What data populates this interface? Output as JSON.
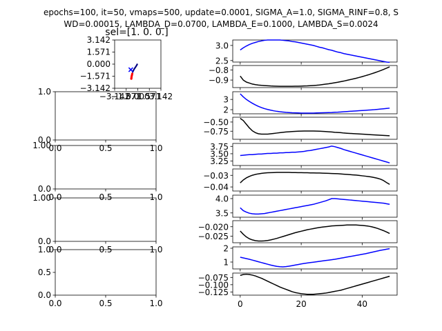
{
  "header": {
    "suptitle_line1": "epochs=100, it=50, vmaps=500, update=0.0001, SIGMA_A=1.0, SIGMA_RINF=0.8, S",
    "suptitle_line2": "WD=0.00015, LAMBDA_D=0.0700, LAMBDA_E=0.1000, LAMBDA_S=0.0024"
  },
  "chart_data": [
    {
      "type": "scatter",
      "title": "sel=[1. 0. 0.]",
      "xlim": [
        -3.142,
        3.142
      ],
      "ylim": [
        -3.142,
        3.142
      ],
      "xticks": [
        "−3.142",
        "−1.571",
        "0.000",
        "1.571",
        "3.142"
      ],
      "yticks": [
        "3.142",
        "1.571",
        "0.000",
        "−1.571",
        "−3.142"
      ],
      "marker_colors": {
        "traj": "#000080",
        "marker": "#0000ff",
        "tail": "#ff0000"
      },
      "trajectory": [
        [
          -0.05,
          0.05
        ],
        [
          -0.08,
          -0.02
        ],
        [
          -0.12,
          -0.1
        ],
        [
          -0.18,
          -0.2
        ],
        [
          -0.26,
          -0.32
        ],
        [
          -0.36,
          -0.46
        ],
        [
          -0.46,
          -0.6
        ],
        [
          -0.56,
          -0.76
        ],
        [
          -0.64,
          -0.92
        ],
        [
          -0.72,
          -1.1
        ]
      ],
      "marker_point": [
        -0.95,
        -0.72
      ],
      "tail": [
        [
          -0.75,
          -1.25
        ],
        [
          -0.8,
          -1.45
        ],
        [
          -0.84,
          -1.62
        ],
        [
          -0.86,
          -1.78
        ],
        [
          -0.88,
          -1.9
        ]
      ]
    },
    {
      "type": "empty",
      "xlim": [
        0,
        1
      ],
      "ylim": [
        0,
        1
      ],
      "xticks": [
        "0.0",
        "0.5",
        "1.0"
      ],
      "yticks": [
        "0.0",
        "1.0"
      ]
    },
    {
      "type": "empty",
      "xlim": [
        0,
        1
      ],
      "ylim": [
        0,
        1
      ],
      "xticks": [
        "0.0",
        "0.5",
        "1.0"
      ],
      "yticks": [
        "0.0",
        "1.00"
      ]
    },
    {
      "type": "empty",
      "xlim": [
        0,
        1
      ],
      "ylim": [
        0,
        1
      ],
      "xticks": [
        "0.0",
        "0.5",
        "1.0"
      ],
      "yticks": [
        "0.0",
        "1.00"
      ]
    },
    {
      "type": "empty",
      "xlim": [
        0,
        1
      ],
      "ylim": [
        0,
        1
      ],
      "xticks": [
        "0.0",
        "0.5",
        "1.0"
      ],
      "yticks": [
        "0.0",
        "0.5",
        "1.0"
      ]
    },
    {
      "type": "line",
      "color": "#0000ff",
      "ylim": [
        2.45,
        3.18
      ],
      "yticks": [
        {
          "v": 3.0,
          "label": "3.0"
        },
        {
          "v": 2.5,
          "label": "2.5"
        }
      ],
      "values": [
        2.85,
        2.92,
        2.98,
        3.03,
        3.07,
        3.1,
        3.13,
        3.15,
        3.17,
        3.18,
        3.18,
        3.18,
        3.18,
        3.18,
        3.17,
        3.16,
        3.15,
        3.13,
        3.12,
        3.1,
        3.08,
        3.06,
        3.04,
        3.02,
        3.0,
        2.97,
        2.94,
        2.92,
        2.89,
        2.86,
        2.84,
        2.81,
        2.78,
        2.76,
        2.73,
        2.71,
        2.69,
        2.67,
        2.65,
        2.63,
        2.61,
        2.59,
        2.57,
        2.55,
        2.53,
        2.51,
        2.49,
        2.47,
        2.45,
        2.44
      ]
    },
    {
      "type": "line",
      "color": "#000000",
      "ylim": [
        -0.975,
        -0.755
      ],
      "yticks": [
        {
          "v": -0.8,
          "label": "−0.8"
        },
        {
          "v": -0.9,
          "label": "−0.9"
        }
      ],
      "values": [
        -0.86,
        -0.9,
        -0.92,
        -0.93,
        -0.94,
        -0.946,
        -0.95,
        -0.953,
        -0.955,
        -0.957,
        -0.959,
        -0.96,
        -0.961,
        -0.962,
        -0.962,
        -0.962,
        -0.962,
        -0.962,
        -0.961,
        -0.961,
        -0.96,
        -0.959,
        -0.958,
        -0.956,
        -0.954,
        -0.952,
        -0.949,
        -0.945,
        -0.941,
        -0.937,
        -0.932,
        -0.927,
        -0.922,
        -0.916,
        -0.91,
        -0.903,
        -0.896,
        -0.889,
        -0.882,
        -0.874,
        -0.866,
        -0.857,
        -0.848,
        -0.838,
        -0.828,
        -0.817,
        -0.806,
        -0.794,
        -0.781,
        -0.768
      ]
    },
    {
      "type": "line",
      "color": "#0000ff",
      "ylim": [
        1.6,
        3.75
      ],
      "yticks": [
        {
          "v": 3.0,
          "label": "3"
        },
        {
          "v": 2.0,
          "label": "2"
        }
      ],
      "values": [
        3.55,
        3.25,
        3.0,
        2.8,
        2.62,
        2.46,
        2.32,
        2.2,
        2.1,
        2.02,
        1.95,
        1.89,
        1.84,
        1.8,
        1.77,
        1.74,
        1.72,
        1.7,
        1.69,
        1.68,
        1.67,
        1.67,
        1.67,
        1.67,
        1.67,
        1.68,
        1.69,
        1.7,
        1.71,
        1.72,
        1.73,
        1.75,
        1.76,
        1.78,
        1.8,
        1.82,
        1.84,
        1.86,
        1.88,
        1.9,
        1.92,
        1.94,
        1.96,
        1.98,
        2.0,
        2.03,
        2.06,
        2.09,
        2.12,
        2.15
      ]
    },
    {
      "type": "line",
      "color": "#000000",
      "ylim": [
        -0.97,
        -0.37
      ],
      "yticks": [
        {
          "v": -0.5,
          "label": "−0.50"
        },
        {
          "v": -0.75,
          "label": "−0.75"
        }
      ],
      "values": [
        -0.4,
        -0.46,
        -0.56,
        -0.66,
        -0.74,
        -0.79,
        -0.82,
        -0.83,
        -0.83,
        -0.83,
        -0.82,
        -0.81,
        -0.8,
        -0.79,
        -0.78,
        -0.77,
        -0.765,
        -0.76,
        -0.755,
        -0.75,
        -0.748,
        -0.745,
        -0.745,
        -0.745,
        -0.745,
        -0.748,
        -0.75,
        -0.755,
        -0.76,
        -0.765,
        -0.77,
        -0.78,
        -0.785,
        -0.79,
        -0.8,
        -0.805,
        -0.81,
        -0.815,
        -0.82,
        -0.825,
        -0.83,
        -0.835,
        -0.84,
        -0.845,
        -0.85,
        -0.855,
        -0.86,
        -0.865,
        -0.87,
        -0.875
      ]
    },
    {
      "type": "line",
      "color": "#0000ff",
      "ylim": [
        3.1,
        3.85
      ],
      "yticks": [
        {
          "v": 3.75,
          "label": "3.75"
        },
        {
          "v": 3.5,
          "label": "3.50"
        },
        {
          "v": 3.25,
          "label": "3.25"
        }
      ],
      "values": [
        3.44,
        3.45,
        3.46,
        3.47,
        3.47,
        3.48,
        3.49,
        3.49,
        3.5,
        3.51,
        3.51,
        3.52,
        3.52,
        3.53,
        3.53,
        3.54,
        3.54,
        3.55,
        3.55,
        3.56,
        3.57,
        3.58,
        3.6,
        3.61,
        3.63,
        3.65,
        3.67,
        3.69,
        3.71,
        3.73,
        3.76,
        3.74,
        3.71,
        3.68,
        3.64,
        3.61,
        3.58,
        3.55,
        3.52,
        3.49,
        3.46,
        3.43,
        3.4,
        3.37,
        3.34,
        3.31,
        3.28,
        3.25,
        3.22,
        3.19
      ]
    },
    {
      "type": "line",
      "color": "#000000",
      "ylim": [
        -0.0435,
        -0.0245
      ],
      "yticks": [
        {
          "v": -0.03,
          "label": "−0.03"
        },
        {
          "v": -0.04,
          "label": "−0.04"
        }
      ],
      "values": [
        -0.0365,
        -0.034,
        -0.0322,
        -0.0309,
        -0.0299,
        -0.0292,
        -0.0287,
        -0.0283,
        -0.028,
        -0.0278,
        -0.0277,
        -0.0276,
        -0.0275,
        -0.0275,
        -0.0275,
        -0.0275,
        -0.0275,
        -0.0276,
        -0.0276,
        -0.0277,
        -0.0277,
        -0.0278,
        -0.0278,
        -0.0279,
        -0.0279,
        -0.028,
        -0.028,
        -0.0281,
        -0.0282,
        -0.0283,
        -0.0284,
        -0.0285,
        -0.0286,
        -0.0288,
        -0.029,
        -0.0292,
        -0.0294,
        -0.0296,
        -0.0298,
        -0.0301,
        -0.0304,
        -0.0307,
        -0.031,
        -0.0314,
        -0.0319,
        -0.0325,
        -0.0333,
        -0.0345,
        -0.0362,
        -0.0378
      ]
    },
    {
      "type": "line",
      "color": "#0000ff",
      "ylim": [
        3.35,
        4.12
      ],
      "yticks": [
        {
          "v": 4.0,
          "label": "4.0"
        },
        {
          "v": 3.5,
          "label": "3.5"
        }
      ],
      "values": [
        3.68,
        3.58,
        3.53,
        3.49,
        3.47,
        3.46,
        3.46,
        3.47,
        3.48,
        3.5,
        3.52,
        3.54,
        3.56,
        3.58,
        3.6,
        3.62,
        3.64,
        3.66,
        3.68,
        3.7,
        3.72,
        3.74,
        3.76,
        3.78,
        3.8,
        3.83,
        3.86,
        3.89,
        3.92,
        3.96,
        4.0,
        4.0,
        3.99,
        3.98,
        3.97,
        3.96,
        3.95,
        3.94,
        3.93,
        3.92,
        3.91,
        3.9,
        3.89,
        3.88,
        3.87,
        3.86,
        3.85,
        3.84,
        3.82,
        3.8
      ]
    },
    {
      "type": "line",
      "color": "#000000",
      "ylim": [
        -0.0285,
        -0.0168
      ],
      "yticks": [
        {
          "v": -0.02,
          "label": "−0.020"
        },
        {
          "v": -0.025,
          "label": "−0.025"
        }
      ],
      "values": [
        -0.0223,
        -0.024,
        -0.0254,
        -0.0264,
        -0.027,
        -0.0274,
        -0.0276,
        -0.0276,
        -0.0275,
        -0.0273,
        -0.027,
        -0.0266,
        -0.0262,
        -0.0257,
        -0.0252,
        -0.0247,
        -0.0242,
        -0.0237,
        -0.0232,
        -0.0228,
        -0.0224,
        -0.022,
        -0.0216,
        -0.0213,
        -0.021,
        -0.0207,
        -0.0204,
        -0.0202,
        -0.02,
        -0.0198,
        -0.0196,
        -0.0195,
        -0.0194,
        -0.0193,
        -0.0192,
        -0.0191,
        -0.0191,
        -0.0191,
        -0.0191,
        -0.0192,
        -0.0193,
        -0.0195,
        -0.0197,
        -0.02,
        -0.0204,
        -0.0209,
        -0.0215,
        -0.0221,
        -0.0228,
        -0.0236
      ]
    },
    {
      "type": "line",
      "color": "#0000ff",
      "ylim": [
        0.5,
        2.1
      ],
      "yticks": [
        {
          "v": 2.0,
          "label": "2"
        },
        {
          "v": 1.0,
          "label": "1"
        }
      ],
      "values": [
        1.35,
        1.3,
        1.25,
        1.2,
        1.14,
        1.08,
        1.02,
        0.96,
        0.9,
        0.84,
        0.78,
        0.73,
        0.69,
        0.66,
        0.65,
        0.67,
        0.7,
        0.74,
        0.78,
        0.82,
        0.86,
        0.9,
        0.93,
        0.96,
        0.99,
        1.02,
        1.05,
        1.08,
        1.11,
        1.14,
        1.17,
        1.2,
        1.24,
        1.28,
        1.32,
        1.36,
        1.4,
        1.44,
        1.48,
        1.52,
        1.56,
        1.6,
        1.65,
        1.7,
        1.75,
        1.8,
        1.85,
        1.89,
        1.93,
        1.97
      ]
    },
    {
      "type": "line",
      "color": "#000000",
      "ylim": [
        -0.136,
        -0.06
      ],
      "xlim": [
        -2.45,
        51.45
      ],
      "xticks": [
        {
          "v": 0,
          "label": "0"
        },
        {
          "v": 20,
          "label": "20"
        },
        {
          "v": 40,
          "label": "40"
        }
      ],
      "yticks": [
        {
          "v": -0.075,
          "label": "−0.075"
        },
        {
          "v": -0.1,
          "label": "−0.100"
        },
        {
          "v": -0.125,
          "label": "−0.125"
        }
      ],
      "values": [
        -0.068,
        -0.065,
        -0.064,
        -0.065,
        -0.067,
        -0.07,
        -0.074,
        -0.078,
        -0.083,
        -0.088,
        -0.093,
        -0.098,
        -0.103,
        -0.108,
        -0.112,
        -0.116,
        -0.12,
        -0.124,
        -0.127,
        -0.129,
        -0.131,
        -0.132,
        -0.133,
        -0.133,
        -0.133,
        -0.132,
        -0.131,
        -0.13,
        -0.129,
        -0.127,
        -0.125,
        -0.123,
        -0.121,
        -0.119,
        -0.116,
        -0.113,
        -0.11,
        -0.107,
        -0.104,
        -0.101,
        -0.098,
        -0.095,
        -0.092,
        -0.089,
        -0.086,
        -0.083,
        -0.08,
        -0.077,
        -0.074,
        -0.071
      ]
    }
  ]
}
